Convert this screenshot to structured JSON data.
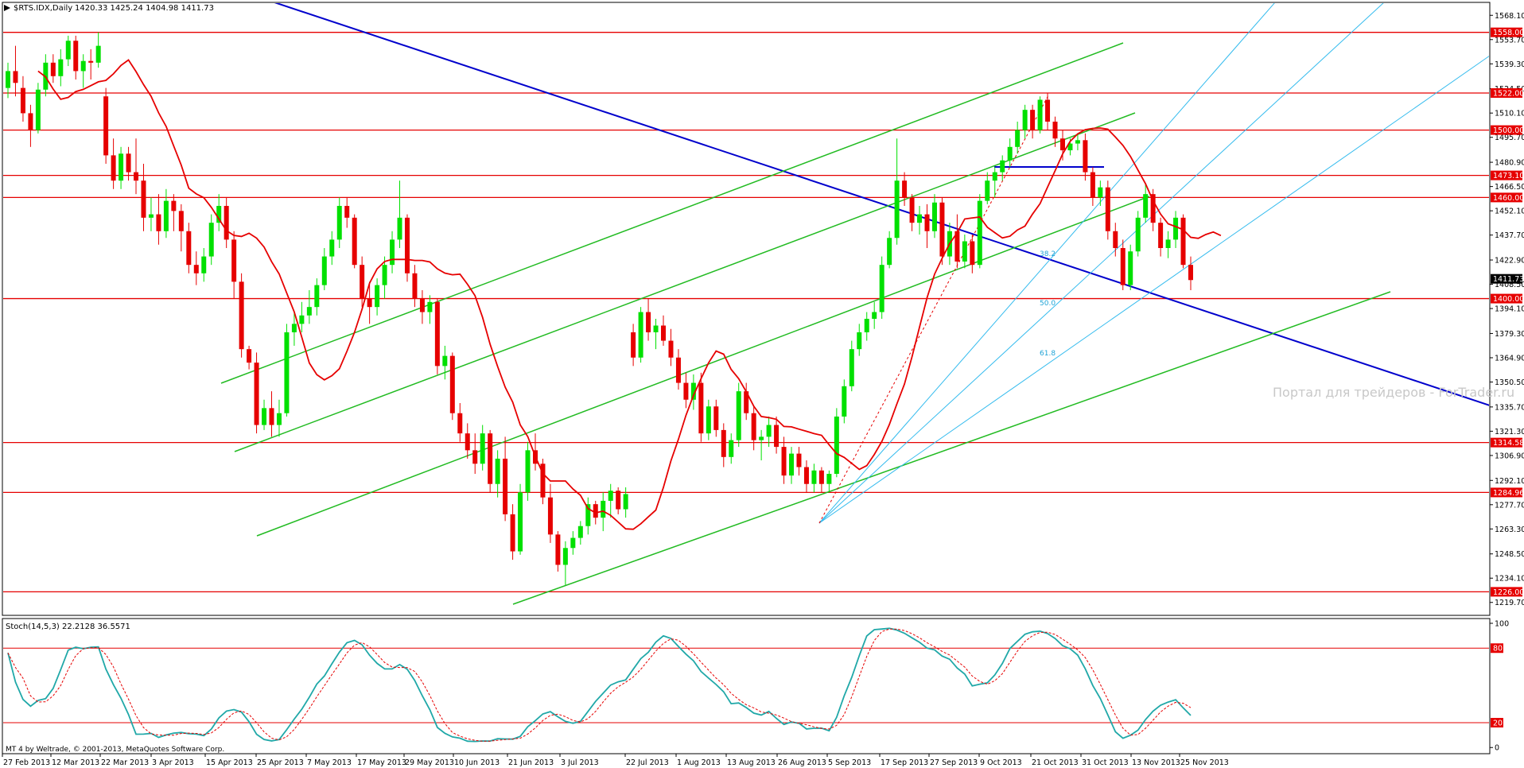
{
  "header": {
    "symbol": "$RTS.IDX,Daily",
    "ohlc": "1420.33 1425.24 1404.98 1411.73"
  },
  "watermark": "Портал для трейдеров - ForTrader.ru",
  "copyright": "MT 4 by Weltrade, © 2001-2013, MetaQuotes Software Corp.",
  "price_axis": {
    "ticks": [
      "1568.10",
      "1553.70",
      "1539.30",
      "1524.50",
      "1510.10",
      "1495.70",
      "1480.90",
      "1466.50",
      "1452.10",
      "1437.70",
      "1422.90",
      "1408.50",
      "1394.10",
      "1379.30",
      "1364.90",
      "1350.50",
      "1335.70",
      "1321.30",
      "1306.90",
      "1292.10",
      "1277.70",
      "1263.30",
      "1248.50",
      "1234.10",
      "1219.70"
    ]
  },
  "levels": [
    {
      "value": "1558.00"
    },
    {
      "value": "1522.00"
    },
    {
      "value": "1500.00"
    },
    {
      "value": "1473.10"
    },
    {
      "value": "1460.00"
    },
    {
      "value": "1400.00"
    },
    {
      "value": "1314.58"
    },
    {
      "value": "1284.96"
    },
    {
      "value": "1226.00"
    }
  ],
  "current_price": "1411.73",
  "fib_labels": [
    "38.2",
    "50.0",
    "61.8"
  ],
  "stoch": {
    "label": "Stoch(14,5,3) 22.2128 36.5571",
    "ticks": [
      "100",
      "80",
      "20",
      "0"
    ],
    "levels": [
      "80",
      "20"
    ]
  },
  "x_axis": {
    "labels": [
      "27 Feb 2013",
      "12 Mar 2013",
      "22 Mar 2013",
      "3 Apr 2013",
      "15 Apr 2013",
      "25 Apr 2013",
      "7 May 2013",
      "17 May 2013",
      "29 May 2013",
      "10 Jun 2013",
      "21 Jun 2013",
      "3 Jul 2013",
      "22 Jul 2013",
      "1 Aug 2013",
      "13 Aug 2013",
      "26 Aug 2013",
      "5 Sep 2013",
      "17 Sep 2013",
      "27 Sep 2013",
      "9 Oct 2013",
      "21 Oct 2013",
      "31 Oct 2013",
      "13 Nov 2013",
      "25 Nov 2013"
    ]
  },
  "colors": {
    "bull": "#00e000",
    "bear": "#e60000",
    "ma": "#e60000",
    "level": "#e60000",
    "trend_blue": "#0000cc",
    "channel": "#22bb22",
    "fan": "#33bbee",
    "stoch_main": "#20a8a8",
    "stoch_signal": "#e60000"
  },
  "chart_data": {
    "type": "candlestick",
    "title": "$RTS.IDX,Daily",
    "price_range": [
      1212.5,
      1575.3
    ],
    "horizontal_levels": [
      1558.0,
      1522.0,
      1500.0,
      1473.1,
      1460.0,
      1400.0,
      1314.58,
      1284.96,
      1226.0
    ],
    "last": {
      "open": 1420.33,
      "high": 1425.24,
      "low": 1404.98,
      "close": 1411.73
    },
    "candles": [
      [
        1525,
        1540,
        1519,
        1535
      ],
      [
        1535,
        1550,
        1520,
        1528
      ],
      [
        1525,
        1532,
        1505,
        1510
      ],
      [
        1510,
        1515,
        1490,
        1500
      ],
      [
        1500,
        1528,
        1498,
        1524
      ],
      [
        1524,
        1545,
        1520,
        1540
      ],
      [
        1540,
        1545,
        1528,
        1532
      ],
      [
        1532,
        1548,
        1526,
        1542
      ],
      [
        1542,
        1556,
        1538,
        1553
      ],
      [
        1553,
        1556,
        1530,
        1535
      ],
      [
        1535,
        1545,
        1525,
        1541
      ],
      [
        1541,
        1548,
        1530,
        1540
      ],
      [
        1540,
        1558,
        1537,
        1550
      ],
      [
        1520,
        1525,
        1480,
        1485
      ],
      [
        1485,
        1495,
        1465,
        1470
      ],
      [
        1470,
        1490,
        1465,
        1486
      ],
      [
        1486,
        1490,
        1470,
        1475
      ],
      [
        1475,
        1495,
        1462,
        1470
      ],
      [
        1470,
        1480,
        1440,
        1448
      ],
      [
        1448,
        1460,
        1440,
        1450
      ],
      [
        1450,
        1462,
        1432,
        1440
      ],
      [
        1440,
        1465,
        1436,
        1458
      ],
      [
        1458,
        1462,
        1440,
        1452
      ],
      [
        1452,
        1456,
        1428,
        1440
      ],
      [
        1440,
        1445,
        1415,
        1420
      ],
      [
        1420,
        1428,
        1408,
        1415
      ],
      [
        1415,
        1430,
        1410,
        1425
      ],
      [
        1425,
        1450,
        1420,
        1445
      ],
      [
        1445,
        1462,
        1440,
        1455
      ],
      [
        1455,
        1460,
        1430,
        1435
      ],
      [
        1435,
        1440,
        1400,
        1410
      ],
      [
        1410,
        1415,
        1365,
        1370
      ],
      [
        1370,
        1372,
        1358,
        1362
      ],
      [
        1362,
        1368,
        1320,
        1325
      ],
      [
        1325,
        1340,
        1322,
        1335
      ],
      [
        1335,
        1345,
        1318,
        1325
      ],
      [
        1325,
        1340,
        1318,
        1332
      ],
      [
        1332,
        1385,
        1330,
        1380
      ],
      [
        1380,
        1392,
        1372,
        1385
      ],
      [
        1385,
        1398,
        1380,
        1390
      ],
      [
        1390,
        1405,
        1385,
        1395
      ],
      [
        1395,
        1412,
        1390,
        1408
      ],
      [
        1408,
        1430,
        1405,
        1425
      ],
      [
        1425,
        1440,
        1420,
        1435
      ],
      [
        1435,
        1460,
        1430,
        1455
      ],
      [
        1455,
        1460,
        1442,
        1448
      ],
      [
        1448,
        1450,
        1418,
        1420
      ],
      [
        1420,
        1425,
        1395,
        1400
      ],
      [
        1400,
        1410,
        1385,
        1395
      ],
      [
        1395,
        1412,
        1390,
        1408
      ],
      [
        1408,
        1425,
        1400,
        1420
      ],
      [
        1420,
        1440,
        1415,
        1435
      ],
      [
        1435,
        1470,
        1430,
        1448
      ],
      [
        1448,
        1450,
        1410,
        1415
      ],
      [
        1415,
        1420,
        1395,
        1400
      ],
      [
        1400,
        1405,
        1385,
        1392
      ],
      [
        1392,
        1402,
        1385,
        1398
      ],
      [
        1398,
        1400,
        1355,
        1360
      ],
      [
        1360,
        1372,
        1352,
        1366
      ],
      [
        1366,
        1368,
        1328,
        1332
      ],
      [
        1332,
        1338,
        1315,
        1320
      ],
      [
        1320,
        1326,
        1305,
        1310
      ],
      [
        1310,
        1320,
        1296,
        1302
      ],
      [
        1302,
        1325,
        1298,
        1320
      ],
      [
        1320,
        1322,
        1285,
        1290
      ],
      [
        1290,
        1310,
        1282,
        1305
      ],
      [
        1305,
        1318,
        1268,
        1272
      ],
      [
        1272,
        1278,
        1245,
        1250
      ],
      [
        1250,
        1290,
        1248,
        1285
      ],
      [
        1285,
        1315,
        1280,
        1310
      ],
      [
        1310,
        1320,
        1298,
        1302
      ],
      [
        1302,
        1305,
        1278,
        1282
      ],
      [
        1282,
        1290,
        1255,
        1260
      ],
      [
        1260,
        1262,
        1238,
        1242
      ],
      [
        1242,
        1256,
        1230,
        1252
      ],
      [
        1252,
        1262,
        1248,
        1258
      ],
      [
        1258,
        1268,
        1254,
        1265
      ],
      [
        1265,
        1282,
        1260,
        1278
      ],
      [
        1278,
        1280,
        1266,
        1270
      ],
      [
        1270,
        1285,
        1262,
        1280
      ],
      [
        1280,
        1290,
        1270,
        1286
      ],
      [
        1286,
        1288,
        1272,
        1275
      ],
      [
        1275,
        1288,
        1270,
        1284
      ],
      [
        1380,
        1385,
        1360,
        1365
      ],
      [
        1365,
        1395,
        1362,
        1392
      ],
      [
        1392,
        1400,
        1375,
        1380
      ],
      [
        1380,
        1388,
        1370,
        1384
      ],
      [
        1384,
        1390,
        1372,
        1375
      ],
      [
        1375,
        1382,
        1360,
        1365
      ],
      [
        1365,
        1370,
        1346,
        1350
      ],
      [
        1350,
        1356,
        1335,
        1340
      ],
      [
        1340,
        1355,
        1334,
        1350
      ],
      [
        1350,
        1356,
        1315,
        1320
      ],
      [
        1320,
        1340,
        1316,
        1336
      ],
      [
        1336,
        1340,
        1318,
        1322
      ],
      [
        1322,
        1326,
        1300,
        1306
      ],
      [
        1306,
        1320,
        1302,
        1316
      ],
      [
        1316,
        1350,
        1312,
        1345
      ],
      [
        1345,
        1350,
        1328,
        1332
      ],
      [
        1332,
        1336,
        1310,
        1316
      ],
      [
        1316,
        1322,
        1304,
        1318
      ],
      [
        1318,
        1330,
        1312,
        1325
      ],
      [
        1325,
        1330,
        1308,
        1312
      ],
      [
        1312,
        1318,
        1290,
        1295
      ],
      [
        1295,
        1312,
        1290,
        1308
      ],
      [
        1308,
        1312,
        1295,
        1300
      ],
      [
        1300,
        1304,
        1285,
        1290
      ],
      [
        1290,
        1302,
        1285,
        1298
      ],
      [
        1298,
        1300,
        1285,
        1290
      ],
      [
        1290,
        1298,
        1285,
        1296
      ],
      [
        1296,
        1335,
        1294,
        1330
      ],
      [
        1330,
        1352,
        1326,
        1348
      ],
      [
        1348,
        1375,
        1345,
        1370
      ],
      [
        1370,
        1385,
        1366,
        1380
      ],
      [
        1380,
        1392,
        1375,
        1388
      ],
      [
        1388,
        1398,
        1382,
        1392
      ],
      [
        1392,
        1425,
        1388,
        1420
      ],
      [
        1420,
        1440,
        1418,
        1436
      ],
      [
        1436,
        1495,
        1432,
        1470
      ],
      [
        1470,
        1475,
        1455,
        1460
      ],
      [
        1460,
        1462,
        1440,
        1445
      ],
      [
        1445,
        1455,
        1438,
        1450
      ],
      [
        1450,
        1456,
        1430,
        1440
      ],
      [
        1440,
        1462,
        1436,
        1457
      ],
      [
        1457,
        1460,
        1420,
        1425
      ],
      [
        1425,
        1445,
        1420,
        1440
      ],
      [
        1440,
        1450,
        1418,
        1422
      ],
      [
        1422,
        1438,
        1418,
        1434
      ],
      [
        1434,
        1438,
        1415,
        1420
      ],
      [
        1420,
        1462,
        1418,
        1458
      ],
      [
        1458,
        1475,
        1456,
        1470
      ],
      [
        1470,
        1478,
        1460,
        1475
      ],
      [
        1475,
        1485,
        1470,
        1482
      ],
      [
        1482,
        1495,
        1478,
        1490
      ],
      [
        1490,
        1505,
        1486,
        1500
      ],
      [
        1500,
        1515,
        1495,
        1512
      ],
      [
        1512,
        1515,
        1495,
        1500
      ],
      [
        1500,
        1520,
        1498,
        1518
      ],
      [
        1518,
        1522,
        1500,
        1505
      ],
      [
        1505,
        1508,
        1490,
        1495
      ],
      [
        1495,
        1500,
        1482,
        1488
      ],
      [
        1488,
        1495,
        1485,
        1492
      ],
      [
        1492,
        1498,
        1488,
        1494
      ],
      [
        1494,
        1498,
        1470,
        1475
      ],
      [
        1475,
        1478,
        1455,
        1460
      ],
      [
        1460,
        1470,
        1455,
        1466
      ],
      [
        1466,
        1470,
        1435,
        1440
      ],
      [
        1440,
        1445,
        1425,
        1430
      ],
      [
        1430,
        1435,
        1405,
        1408
      ],
      [
        1408,
        1432,
        1405,
        1428
      ],
      [
        1428,
        1452,
        1425,
        1448
      ],
      [
        1448,
        1468,
        1445,
        1462
      ],
      [
        1462,
        1465,
        1440,
        1445
      ],
      [
        1445,
        1448,
        1425,
        1430
      ],
      [
        1430,
        1440,
        1424,
        1435
      ],
      [
        1435,
        1452,
        1430,
        1448
      ],
      [
        1448,
        1450,
        1418,
        1420
      ],
      [
        1420,
        1425,
        1405,
        1411
      ]
    ]
  }
}
